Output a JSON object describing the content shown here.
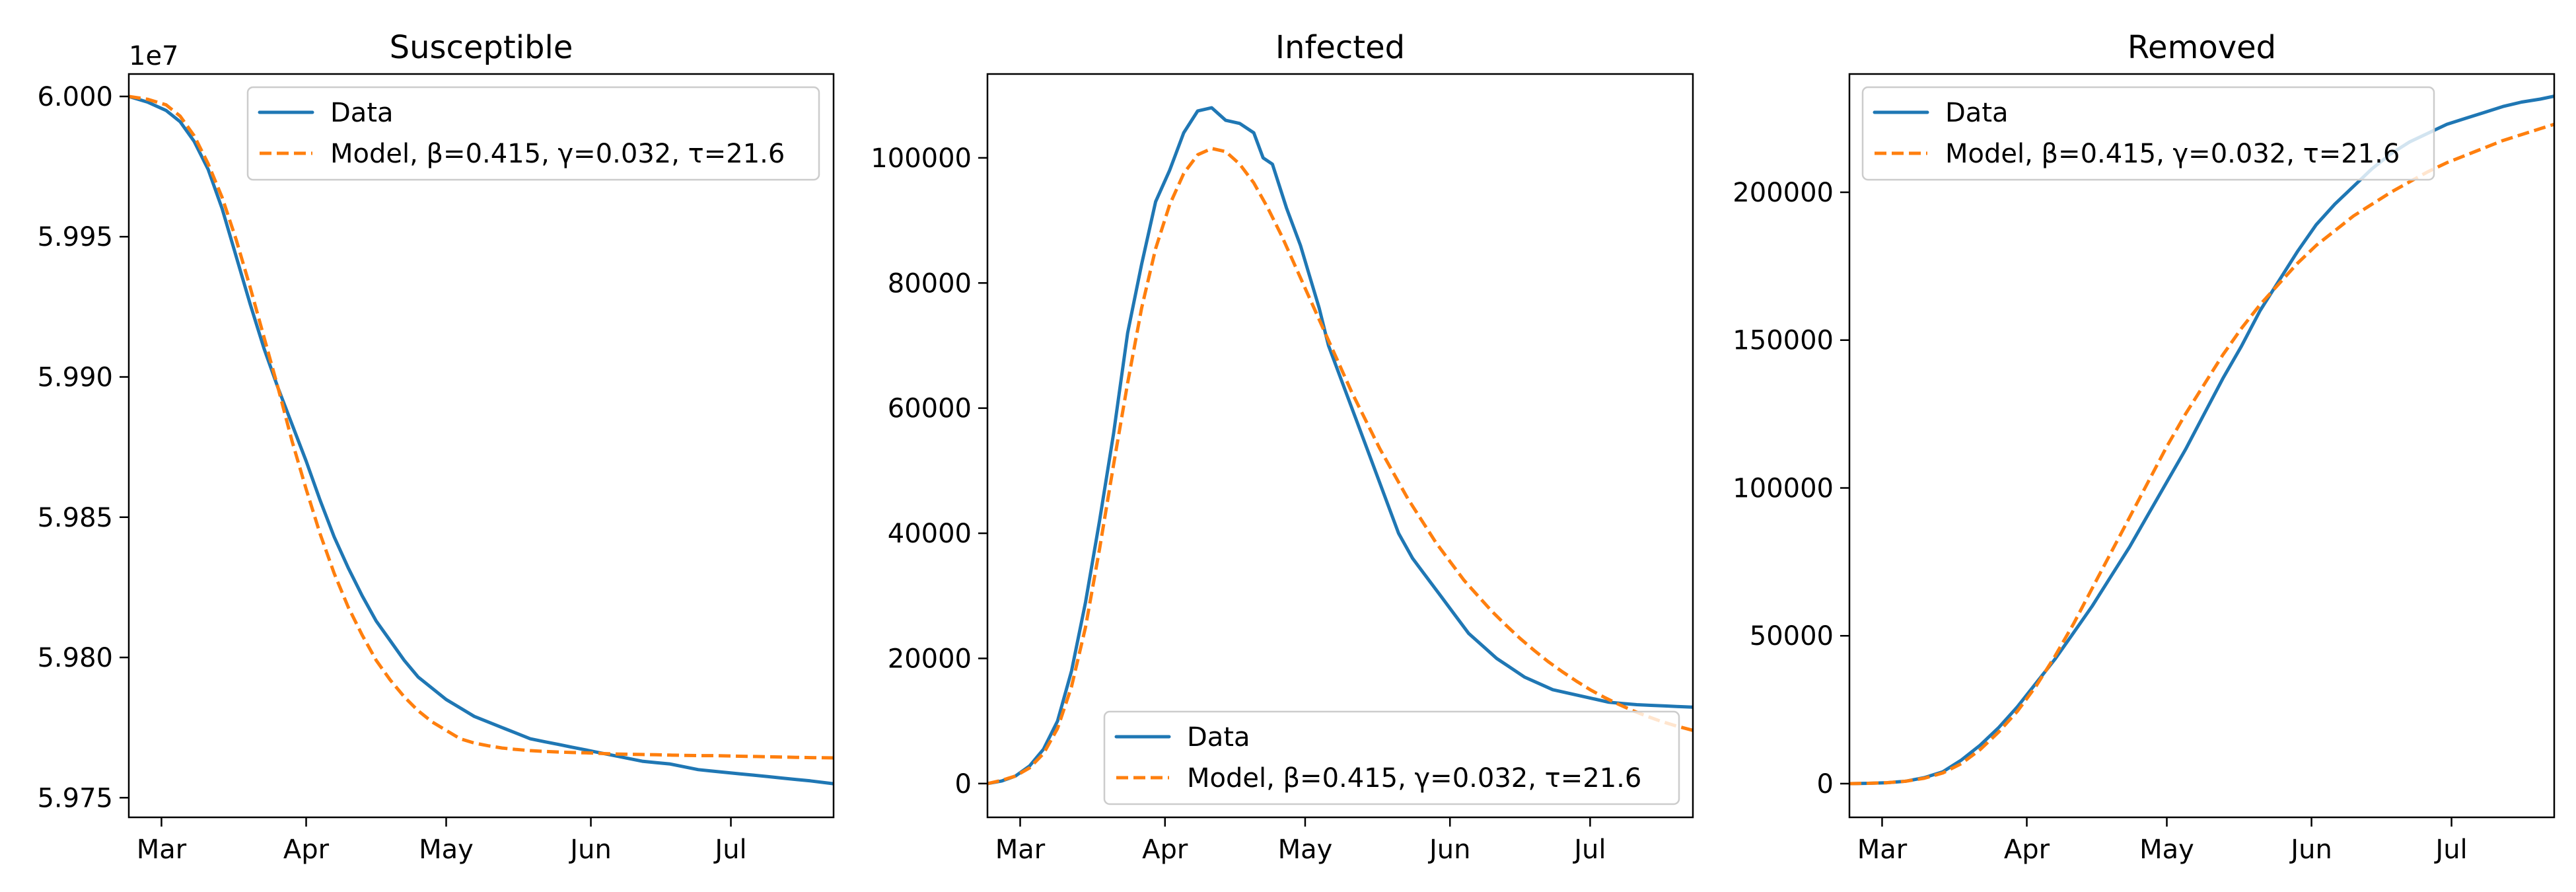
{
  "chart_data": [
    {
      "type": "line",
      "title": "Susceptible",
      "xlabel": "",
      "ylabel": "",
      "y_offset_label": "1e7",
      "y_scale": 10000000,
      "xlim": [
        54,
        205
      ],
      "ylim": [
        59743000,
        60008000
      ],
      "x_ticks": [
        {
          "v": 61,
          "label": "Mar"
        },
        {
          "v": 92,
          "label": "Apr"
        },
        {
          "v": 122,
          "label": "May"
        },
        {
          "v": 153,
          "label": "Jun"
        },
        {
          "v": 183,
          "label": "Jul"
        }
      ],
      "y_ticks": [
        {
          "v": 59750000,
          "label": "5.975"
        },
        {
          "v": 59800000,
          "label": "5.980"
        },
        {
          "v": 59850000,
          "label": "5.985"
        },
        {
          "v": 59900000,
          "label": "5.990"
        },
        {
          "v": 59950000,
          "label": "5.995"
        },
        {
          "v": 60000000,
          "label": "6.000"
        }
      ],
      "legend_position": "upper right",
      "series": [
        {
          "name": "Data",
          "style": "solid",
          "color": "#1f77b4",
          "x": [
            54,
            58,
            62,
            65,
            68,
            71,
            74,
            77,
            80,
            83,
            86,
            89,
            92,
            95,
            98,
            101,
            104,
            107,
            110,
            113,
            116,
            119,
            122,
            125,
            128,
            131,
            134,
            137,
            140,
            143,
            146,
            149,
            152,
            155,
            158,
            161,
            164,
            167,
            170,
            173,
            176,
            179,
            182,
            185,
            188,
            191,
            194,
            197,
            200,
            205
          ],
          "y": [
            60000000,
            59998000,
            59995000,
            59991000,
            59984000,
            59974000,
            59960000,
            59943000,
            59926000,
            59910000,
            59896000,
            59883000,
            59870000,
            59856000,
            59843000,
            59832000,
            59822000,
            59813000,
            59806000,
            59799000,
            59793000,
            59789000,
            59785000,
            59782000,
            59779000,
            59777000,
            59775000,
            59773000,
            59771000,
            59770000,
            59769000,
            59768000,
            59767000,
            59766000,
            59765000,
            59764000,
            59763000,
            59762500,
            59762000,
            59761000,
            59760000,
            59759500,
            59759000,
            59758500,
            59758000,
            59757500,
            59757000,
            59756500,
            59756000,
            59755000
          ]
        },
        {
          "name": "Model, β=0.415, γ=0.032, τ=21.6",
          "style": "dashed",
          "color": "#ff7f0e",
          "x": [
            54,
            58,
            62,
            65,
            68,
            71,
            74,
            77,
            80,
            83,
            86,
            89,
            92,
            95,
            98,
            101,
            104,
            107,
            110,
            113,
            116,
            119,
            122,
            125,
            128,
            131,
            134,
            137,
            140,
            143,
            146,
            149,
            152,
            155,
            158,
            161,
            164,
            167,
            170,
            173,
            176,
            179,
            182,
            185,
            188,
            191,
            194,
            197,
            200,
            205
          ],
          "y": [
            60000000,
            59999000,
            59997000,
            59993000,
            59986000,
            59976000,
            59964000,
            59949000,
            59932000,
            59914000,
            59896000,
            59877000,
            59860000,
            59844000,
            59830000,
            59818000,
            59808000,
            59799000,
            59792000,
            59786000,
            59781000,
            59777000,
            59774000,
            59771000,
            59769500,
            59768500,
            59767700,
            59767200,
            59766800,
            59766500,
            59766300,
            59766100,
            59766000,
            59765800,
            59765600,
            59765500,
            59765400,
            59765300,
            59765200,
            59765100,
            59765000,
            59765000,
            59764900,
            59764800,
            59764700,
            59764600,
            59764500,
            59764400,
            59764300,
            59764200
          ]
        }
      ]
    },
    {
      "type": "line",
      "title": "Infected",
      "xlabel": "",
      "ylabel": "",
      "y_offset_label": "",
      "y_scale": 1,
      "xlim": [
        54,
        205
      ],
      "ylim": [
        -5400,
        113400
      ],
      "x_ticks": [
        {
          "v": 61,
          "label": "Mar"
        },
        {
          "v": 92,
          "label": "Apr"
        },
        {
          "v": 122,
          "label": "May"
        },
        {
          "v": 153,
          "label": "Jun"
        },
        {
          "v": 183,
          "label": "Jul"
        }
      ],
      "y_ticks": [
        {
          "v": 0,
          "label": "0"
        },
        {
          "v": 20000,
          "label": "20000"
        },
        {
          "v": 40000,
          "label": "40000"
        },
        {
          "v": 60000,
          "label": "60000"
        },
        {
          "v": 80000,
          "label": "80000"
        },
        {
          "v": 100000,
          "label": "100000"
        }
      ],
      "legend_position": "lower right",
      "series": [
        {
          "name": "Data",
          "style": "solid",
          "color": "#1f77b4",
          "x": [
            54,
            57,
            60,
            63,
            66,
            69,
            72,
            75,
            78,
            81,
            84,
            87,
            90,
            93,
            96,
            99,
            102,
            105,
            108,
            111,
            113,
            115,
            118,
            121,
            123,
            125,
            127,
            130,
            133,
            136,
            139,
            142,
            145,
            148,
            151,
            154,
            157,
            160,
            163,
            166,
            169,
            172,
            175,
            178,
            181,
            184,
            187,
            190,
            193,
            196,
            199,
            202,
            205
          ],
          "y": [
            0,
            400,
            1200,
            2800,
            5500,
            10000,
            18000,
            29000,
            42000,
            56000,
            72000,
            83000,
            93000,
            98000,
            104000,
            107500,
            108000,
            106000,
            105500,
            104000,
            100000,
            99000,
            92000,
            86000,
            81000,
            76000,
            70000,
            64000,
            58000,
            52000,
            46000,
            40000,
            36000,
            33000,
            30000,
            27000,
            24000,
            22000,
            20000,
            18500,
            17000,
            16000,
            15000,
            14500,
            14000,
            13500,
            13000,
            12800,
            12600,
            12500,
            12400,
            12300,
            12200
          ]
        },
        {
          "name": "Model, β=0.415, γ=0.032, τ=21.6",
          "style": "dashed",
          "color": "#ff7f0e",
          "x": [
            54,
            57,
            60,
            63,
            66,
            69,
            72,
            75,
            78,
            81,
            84,
            87,
            90,
            93,
            96,
            99,
            102,
            105,
            108,
            111,
            114,
            117,
            120,
            123,
            126,
            129,
            132,
            135,
            138,
            141,
            144,
            147,
            150,
            153,
            156,
            159,
            162,
            165,
            168,
            171,
            174,
            177,
            180,
            183,
            186,
            189,
            192,
            195,
            198,
            201,
            205
          ],
          "y": [
            0,
            500,
            1200,
            2500,
            4800,
            8800,
            15500,
            25000,
            37500,
            51000,
            64000,
            76000,
            85500,
            92500,
            97500,
            100500,
            101500,
            101000,
            99000,
            96000,
            92000,
            87500,
            82500,
            77500,
            72500,
            67500,
            62500,
            58000,
            53500,
            49500,
            45500,
            42000,
            38500,
            35500,
            32500,
            30000,
            27500,
            25300,
            23200,
            21300,
            19500,
            17900,
            16400,
            15000,
            13800,
            12700,
            11700,
            10800,
            10000,
            9300,
            8500
          ]
        }
      ]
    },
    {
      "type": "line",
      "title": "Removed",
      "xlabel": "",
      "ylabel": "",
      "y_offset_label": "",
      "y_scale": 1,
      "xlim": [
        54,
        205
      ],
      "ylim": [
        -11400,
        240000
      ],
      "x_ticks": [
        {
          "v": 61,
          "label": "Mar"
        },
        {
          "v": 92,
          "label": "Apr"
        },
        {
          "v": 122,
          "label": "May"
        },
        {
          "v": 153,
          "label": "Jun"
        },
        {
          "v": 183,
          "label": "Jul"
        }
      ],
      "y_ticks": [
        {
          "v": 0,
          "label": "0"
        },
        {
          "v": 50000,
          "label": "50000"
        },
        {
          "v": 100000,
          "label": "100000"
        },
        {
          "v": 150000,
          "label": "150000"
        },
        {
          "v": 200000,
          "label": "200000"
        }
      ],
      "legend_position": "upper left",
      "series": [
        {
          "name": "Data",
          "style": "solid",
          "color": "#1f77b4",
          "x": [
            54,
            58,
            62,
            66,
            70,
            74,
            78,
            82,
            86,
            90,
            94,
            98,
            102,
            106,
            110,
            114,
            118,
            122,
            126,
            130,
            134,
            138,
            142,
            146,
            150,
            154,
            158,
            162,
            166,
            170,
            174,
            178,
            182,
            186,
            190,
            194,
            198,
            202,
            205
          ],
          "y": [
            0,
            100,
            300,
            800,
            2000,
            4000,
            8000,
            13000,
            19000,
            26000,
            34000,
            42000,
            51000,
            60000,
            70000,
            80000,
            91000,
            102000,
            113000,
            125000,
            137000,
            148000,
            160000,
            170000,
            180000,
            189000,
            196000,
            202000,
            208000,
            213000,
            217000,
            220000,
            223000,
            225000,
            227000,
            229000,
            230500,
            231500,
            232500
          ]
        },
        {
          "name": "Model, β=0.415, γ=0.032, τ=21.6",
          "style": "dashed",
          "color": "#ff7f0e",
          "x": [
            54,
            58,
            62,
            66,
            70,
            74,
            78,
            82,
            86,
            90,
            94,
            98,
            102,
            106,
            110,
            114,
            118,
            122,
            126,
            130,
            134,
            138,
            142,
            146,
            150,
            154,
            158,
            162,
            166,
            170,
            174,
            178,
            182,
            186,
            190,
            194,
            198,
            202,
            205
          ],
          "y": [
            0,
            100,
            300,
            800,
            1800,
            3600,
            6800,
            11500,
            17500,
            24500,
            33000,
            43000,
            54000,
            66000,
            78000,
            90000,
            102000,
            114000,
            125000,
            135000,
            145000,
            154000,
            162000,
            169000,
            176000,
            182000,
            187000,
            192000,
            196000,
            200000,
            203500,
            207000,
            210000,
            212500,
            215000,
            217500,
            219500,
            221500,
            223000
          ]
        }
      ]
    }
  ]
}
